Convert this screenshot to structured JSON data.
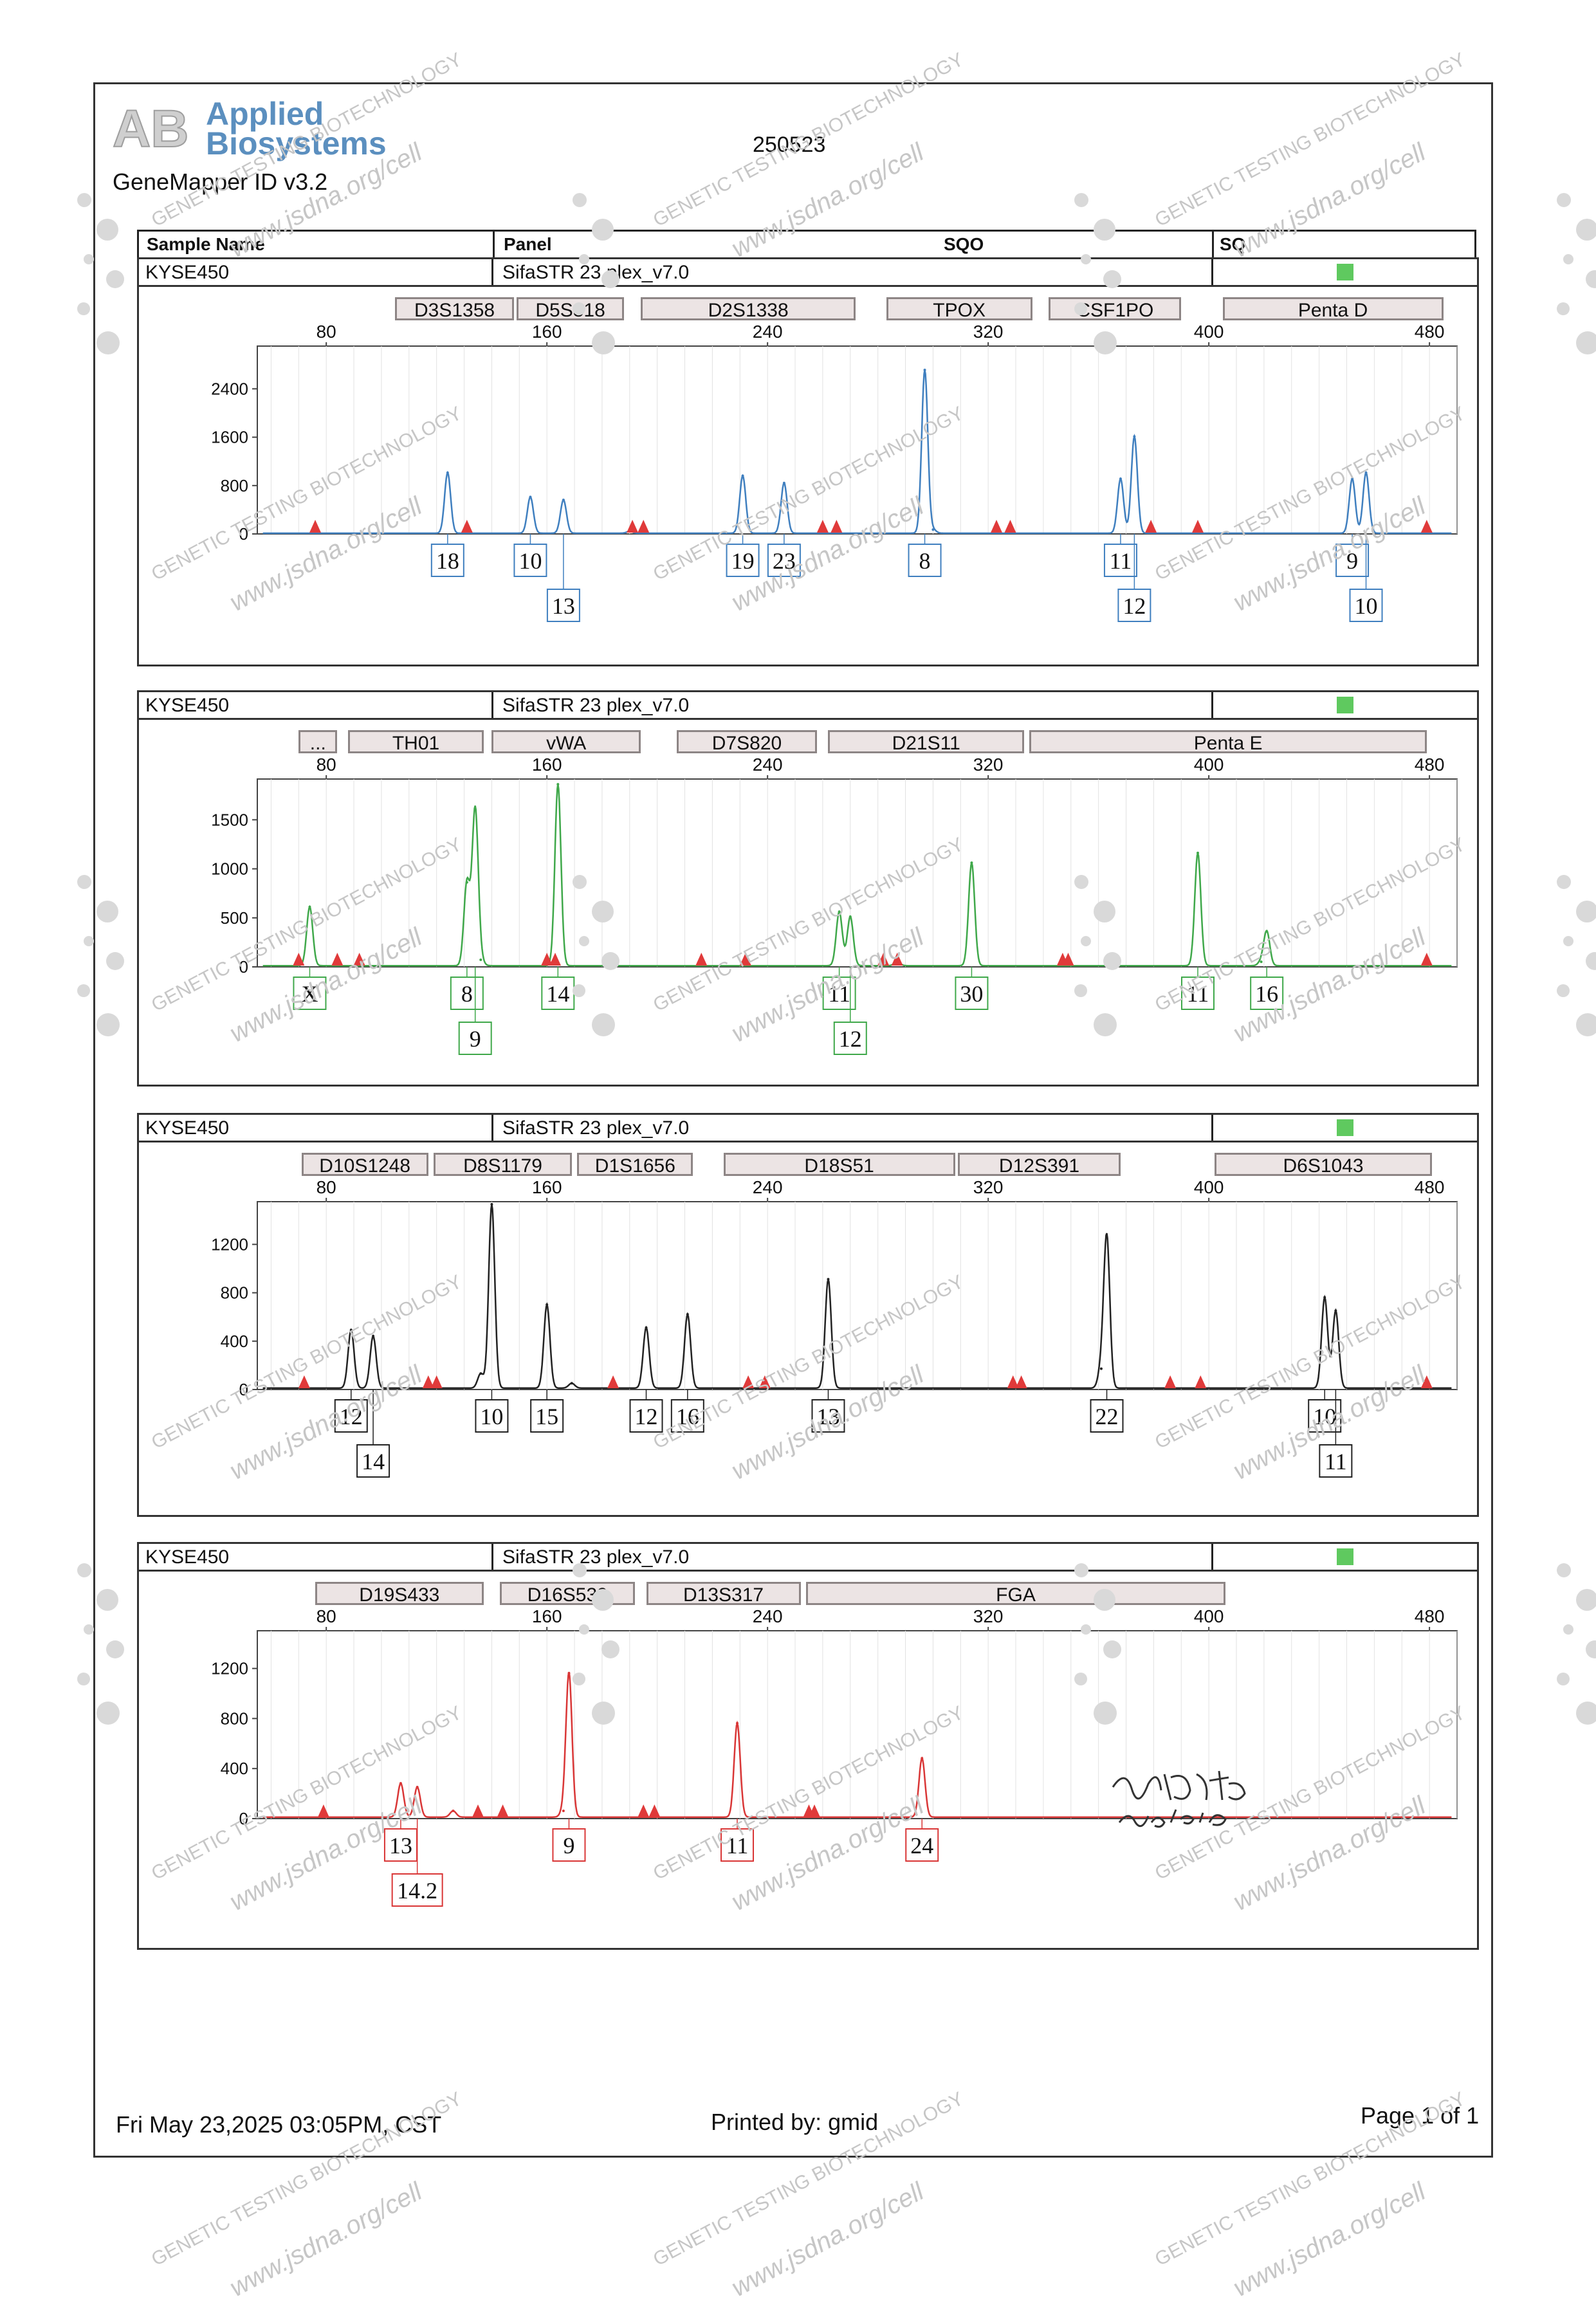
{
  "header": {
    "brand_line1": "Applied",
    "brand_line2": "Biosystems",
    "software": "GeneMapper ID v3.2",
    "run_id": "250523",
    "columns": [
      "Sample Name",
      "Panel",
      "SQO",
      "SQ"
    ]
  },
  "watermark": {
    "line1": "GENETIC TESTING BIOTECHNOLOGY",
    "line2": "www.jsdna.org/cell"
  },
  "colors": {
    "blue": "#3f7fbf",
    "green": "#3fa84a",
    "black": "#222222",
    "red": "#d93636",
    "qc_pass": "#5fc95f",
    "marker": "#e03a3a"
  },
  "x_axis": {
    "min": 55,
    "max": 490,
    "ticks": [
      80,
      160,
      240,
      320,
      400,
      480
    ]
  },
  "panels": [
    {
      "sample": "KYSE450",
      "panel": "SifaSTR 23 plex_v7.0",
      "color": "blue",
      "y_ticks": [
        0,
        800,
        1600,
        2400
      ],
      "y_max": 3000,
      "loci": [
        {
          "name": "D3S1358",
          "start": 105,
          "end": 148
        },
        {
          "name": "D5S818",
          "start": 149,
          "end": 188
        },
        {
          "name": "D2S1338",
          "start": 194,
          "end": 272
        },
        {
          "name": "TPOX",
          "start": 283,
          "end": 336
        },
        {
          "name": "CSF1PO",
          "start": 342,
          "end": 390
        },
        {
          "name": "Penta D",
          "start": 405,
          "end": 485
        }
      ],
      "peaks": [
        [
          124,
          1000
        ],
        [
          154,
          600
        ],
        [
          166,
          550
        ],
        [
          231,
          950
        ],
        [
          246,
          830
        ],
        [
          297,
          2700
        ],
        [
          368,
          900
        ],
        [
          373,
          1600
        ],
        [
          452,
          900
        ],
        [
          457,
          1000
        ],
        [
          190,
          30
        ],
        [
          300,
          60
        ]
      ],
      "markers": [
        76,
        131,
        191,
        195,
        260,
        265,
        323,
        328,
        379,
        396,
        479
      ],
      "alleles": [
        {
          "label": "18",
          "x": 124,
          "row": 1
        },
        {
          "label": "10",
          "x": 154,
          "row": 1
        },
        {
          "label": "13",
          "x": 166,
          "row": 2
        },
        {
          "label": "19",
          "x": 231,
          "row": 1
        },
        {
          "label": "23",
          "x": 246,
          "row": 1
        },
        {
          "label": "8",
          "x": 297,
          "row": 1
        },
        {
          "label": "11",
          "x": 368,
          "row": 1
        },
        {
          "label": "12",
          "x": 373,
          "row": 2
        },
        {
          "label": "9",
          "x": 452,
          "row": 1
        },
        {
          "label": "10",
          "x": 457,
          "row": 2
        }
      ]
    },
    {
      "sample": "KYSE450",
      "panel": "SifaSTR 23 plex_v7.0",
      "color": "green",
      "y_ticks": [
        0,
        500,
        1000,
        1500
      ],
      "y_max": 1850,
      "loci": [
        {
          "name": "...",
          "start": 70,
          "end": 84
        },
        {
          "name": "TH01",
          "start": 88,
          "end": 137
        },
        {
          "name": "vWA",
          "start": 140,
          "end": 194
        },
        {
          "name": "D7S820",
          "start": 207,
          "end": 258
        },
        {
          "name": "D21S11",
          "start": 262,
          "end": 333
        },
        {
          "name": "Penta E",
          "start": 335,
          "end": 479
        }
      ],
      "peaks": [
        [
          74,
          600
        ],
        [
          131,
          850
        ],
        [
          134,
          1600
        ],
        [
          164,
          1850
        ],
        [
          266,
          550
        ],
        [
          270,
          500
        ],
        [
          314,
          1050
        ],
        [
          396,
          1150
        ],
        [
          421,
          350
        ],
        [
          136,
          60
        ],
        [
          287,
          40
        ],
        [
          419,
          40
        ]
      ],
      "markers": [
        70,
        84,
        92,
        160,
        163,
        216,
        232,
        282,
        287,
        347,
        349,
        479
      ],
      "alleles": [
        {
          "label": "X",
          "x": 74,
          "row": 1
        },
        {
          "label": "8",
          "x": 131,
          "row": 1
        },
        {
          "label": "9",
          "x": 134,
          "row": 2
        },
        {
          "label": "14",
          "x": 164,
          "row": 1
        },
        {
          "label": "11",
          "x": 266,
          "row": 1
        },
        {
          "label": "12",
          "x": 270,
          "row": 2
        },
        {
          "label": "30",
          "x": 314,
          "row": 1
        },
        {
          "label": "11",
          "x": 396,
          "row": 1
        },
        {
          "label": "16",
          "x": 421,
          "row": 1
        }
      ]
    },
    {
      "sample": "KYSE450",
      "panel": "SifaSTR 23 plex_v7.0",
      "color": "black",
      "y_ticks": [
        0,
        400,
        800,
        1200
      ],
      "y_max": 1500,
      "loci": [
        {
          "name": "D10S1248",
          "start": 71,
          "end": 117
        },
        {
          "name": "D8S1179",
          "start": 119,
          "end": 169
        },
        {
          "name": "D1S1656",
          "start": 171,
          "end": 213
        },
        {
          "name": "D18S51",
          "start": 224,
          "end": 308
        },
        {
          "name": "D12S391",
          "start": 309,
          "end": 368
        },
        {
          "name": "D6S1043",
          "start": 402,
          "end": 481
        }
      ],
      "peaks": [
        [
          89,
          480
        ],
        [
          97,
          430
        ],
        [
          140,
          1520
        ],
        [
          160,
          690
        ],
        [
          196,
          500
        ],
        [
          211,
          610
        ],
        [
          262,
          900
        ],
        [
          363,
          1250
        ],
        [
          442,
          750
        ],
        [
          446,
          640
        ],
        [
          136,
          120
        ],
        [
          361,
          160
        ],
        [
          169,
          40
        ]
      ],
      "markers": [
        72,
        117,
        120,
        184,
        233,
        239,
        329,
        332,
        386,
        397,
        479
      ],
      "alleles": [
        {
          "label": "12",
          "x": 89,
          "row": 1
        },
        {
          "label": "14",
          "x": 97,
          "row": 2
        },
        {
          "label": "10",
          "x": 140,
          "row": 1
        },
        {
          "label": "15",
          "x": 160,
          "row": 1
        },
        {
          "label": "12",
          "x": 196,
          "row": 1
        },
        {
          "label": "16",
          "x": 211,
          "row": 1
        },
        {
          "label": "13",
          "x": 262,
          "row": 1
        },
        {
          "label": "22",
          "x": 363,
          "row": 1
        },
        {
          "label": "10",
          "x": 442,
          "row": 1
        },
        {
          "label": "11",
          "x": 446,
          "row": 2
        }
      ]
    },
    {
      "sample": "KYSE450",
      "panel": "SifaSTR 23 plex_v7.0",
      "color": "red",
      "y_ticks": [
        0,
        400,
        800,
        1200
      ],
      "y_max": 1450,
      "loci": [
        {
          "name": "D19S433",
          "start": 76,
          "end": 137
        },
        {
          "name": "D16S539",
          "start": 143,
          "end": 192
        },
        {
          "name": "D13S317",
          "start": 196,
          "end": 252
        },
        {
          "name": "FGA",
          "start": 254,
          "end": 406
        }
      ],
      "peaks": [
        [
          107,
          270
        ],
        [
          113,
          240
        ],
        [
          168,
          1150
        ],
        [
          229,
          750
        ],
        [
          296,
          470
        ],
        [
          126,
          50
        ],
        [
          166,
          50
        ]
      ],
      "markers": [
        79,
        135,
        144,
        195,
        199,
        255,
        257
      ],
      "alleles": [
        {
          "label": "13",
          "x": 107,
          "row": 1
        },
        {
          "label": "14.2",
          "x": 113,
          "row": 2
        },
        {
          "label": "9",
          "x": 168,
          "row": 1
        },
        {
          "label": "11",
          "x": 229,
          "row": 1
        },
        {
          "label": "24",
          "x": 296,
          "row": 1
        }
      ]
    }
  ],
  "footer": {
    "date": "Fri May 23,2025 03:05PM, CST",
    "printed_by": "Printed by: gmid",
    "page": "Page 1 of 1"
  }
}
